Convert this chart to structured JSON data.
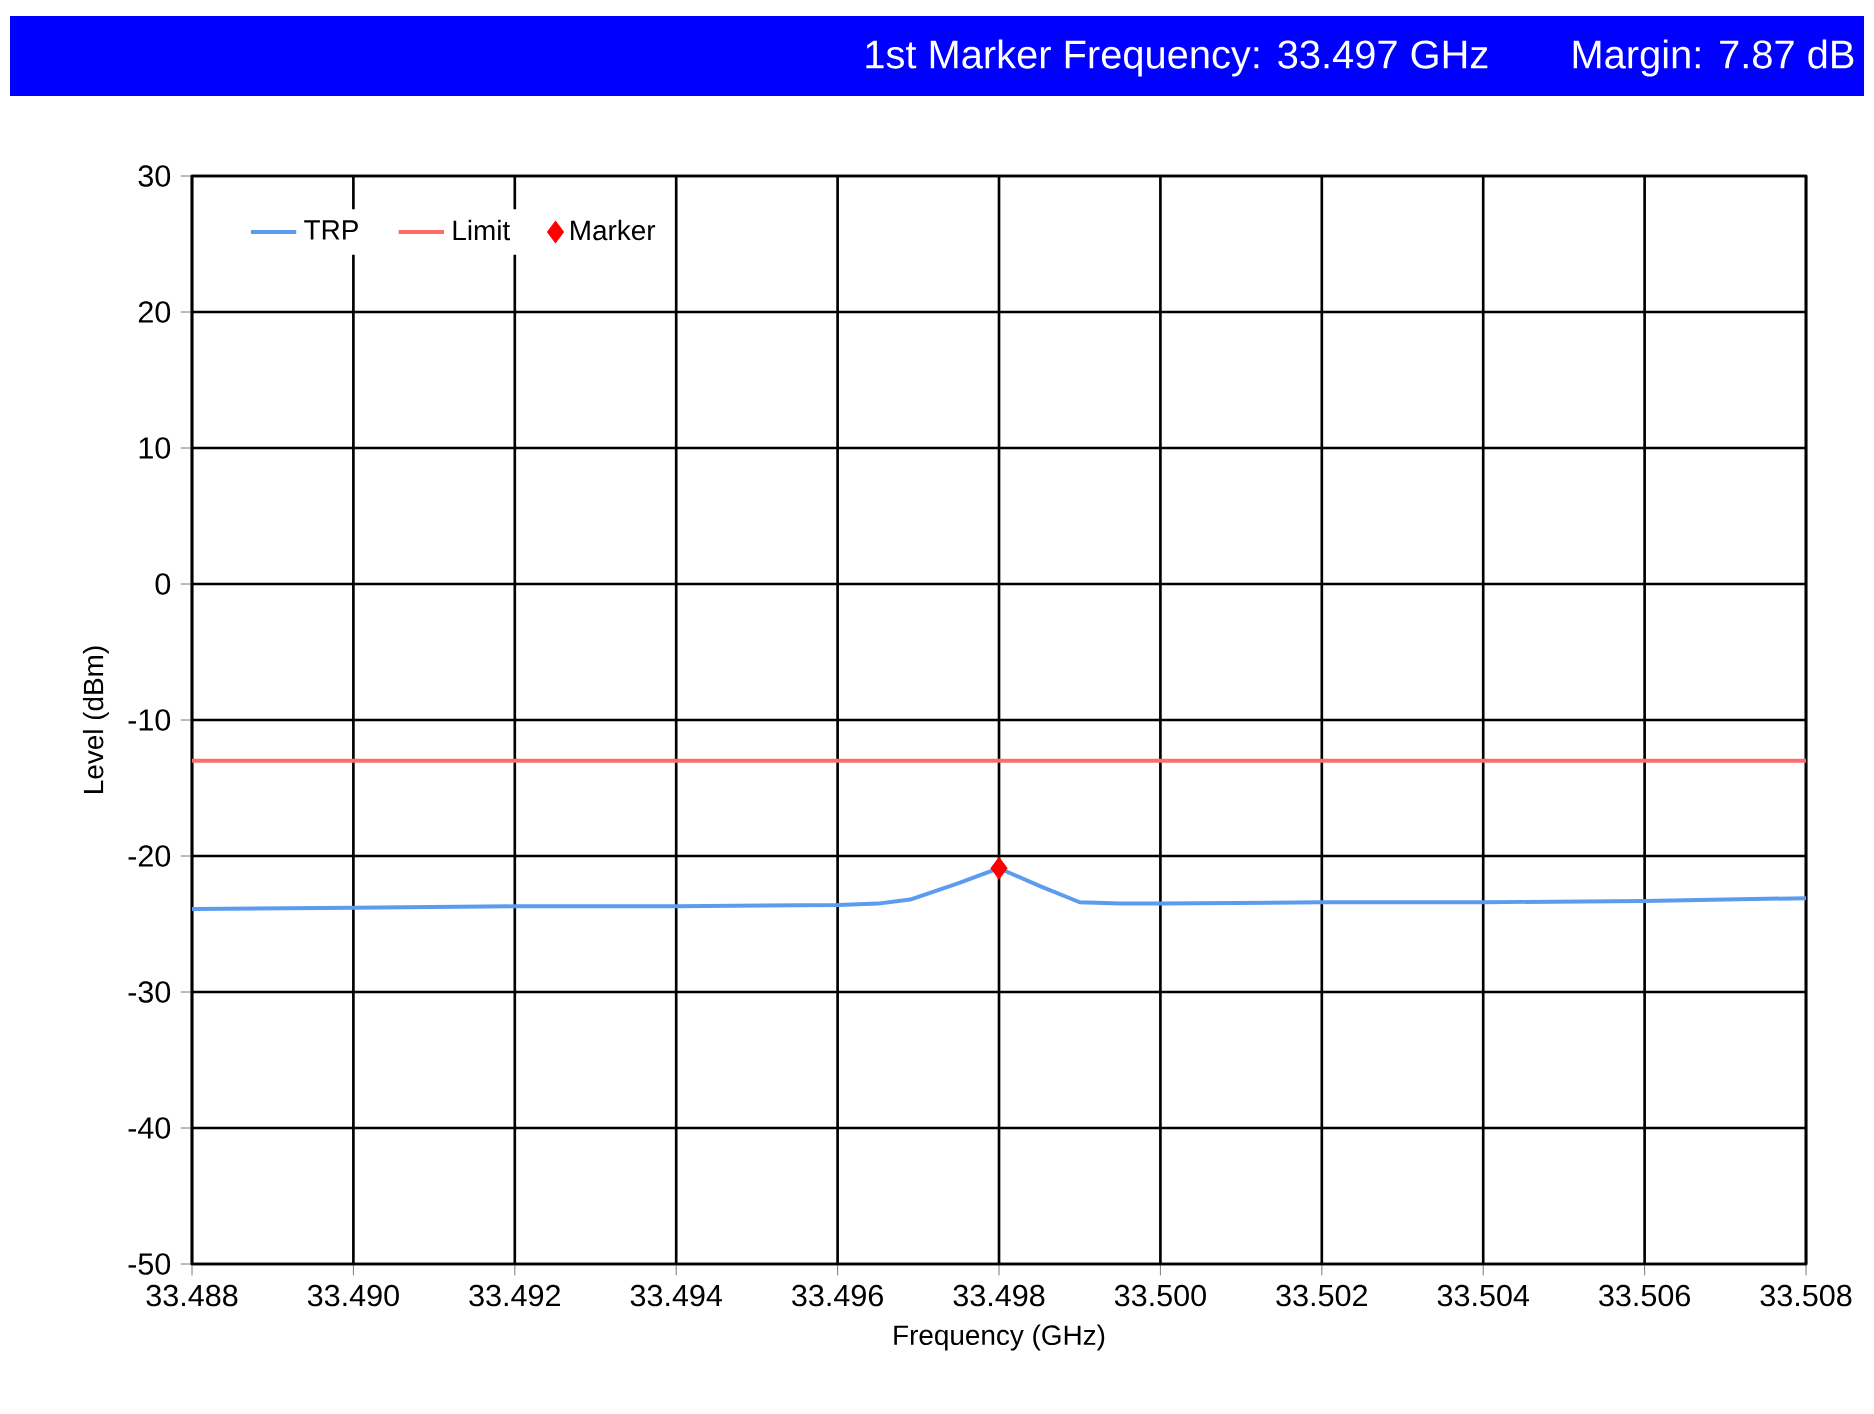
{
  "chart_data": {
    "type": "line",
    "title": "1st   Marker Frequency: 33.497 GHz",
    "subtitle": "Margin: 7.87 dB",
    "xlabel": "Frequency (GHz)",
    "ylabel": "Level (dBm)",
    "series": [
      {
        "name": "TRP",
        "color": "#5b9bf0",
        "x": [
          33.488,
          33.49,
          33.492,
          33.494,
          33.496,
          33.4965,
          33.4969,
          33.4975,
          33.498,
          33.4985,
          33.499,
          33.4995,
          33.5,
          33.502,
          33.504,
          33.506,
          33.508
        ],
        "values": [
          -23.9,
          -23.8,
          -23.7,
          -23.7,
          -23.6,
          -23.5,
          -23.2,
          -22.0,
          -20.9,
          -22.2,
          -23.4,
          -23.5,
          -23.5,
          -23.4,
          -23.4,
          -23.3,
          -23.1
        ]
      },
      {
        "name": "Limit",
        "color": "#ff6b6b",
        "x": [
          33.488,
          33.508
        ],
        "values": [
          -13,
          -13
        ]
      },
      {
        "name": "Marker",
        "type": "scatter",
        "color": "#ff0000",
        "marker": "diamond",
        "x": [
          33.498
        ],
        "values": [
          -20.9
        ]
      }
    ],
    "xlim": [
      33.488,
      33.508
    ],
    "xticks": [
      {
        "value": 33.488,
        "label": "33.488"
      },
      {
        "value": 33.49,
        "label": "33.490"
      },
      {
        "value": 33.492,
        "label": "33.492"
      },
      {
        "value": 33.494,
        "label": "33.494"
      },
      {
        "value": 33.496,
        "label": "33.496"
      },
      {
        "value": 33.498,
        "label": "33.498"
      },
      {
        "value": 33.5,
        "label": "33.500"
      },
      {
        "value": 33.502,
        "label": "33.502"
      },
      {
        "value": 33.504,
        "label": "33.504"
      },
      {
        "value": 33.506,
        "label": "33.506"
      },
      {
        "value": 33.508,
        "label": "33.508"
      }
    ],
    "ylim": [
      -50,
      30
    ],
    "yticks": [
      -50,
      -40,
      -30,
      -20,
      -10,
      0,
      10,
      20,
      30
    ],
    "grid": true,
    "legend": "top left"
  }
}
